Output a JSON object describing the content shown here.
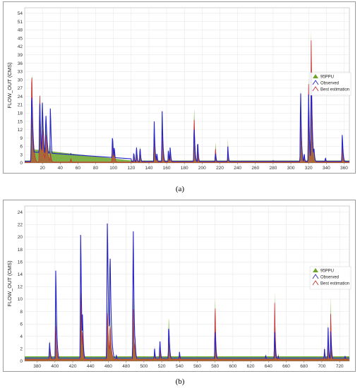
{
  "captions": {
    "a": "(a)",
    "b": "(b)"
  },
  "chart_data": [
    {
      "type": "area",
      "panel": "a",
      "xlabel": "",
      "ylabel": "FLOW_OUT (CMS)",
      "xlim": [
        0,
        366
      ],
      "ylim": [
        0,
        56
      ],
      "xticks": [
        20,
        40,
        60,
        80,
        100,
        120,
        140,
        160,
        180,
        200,
        220,
        240,
        260,
        280,
        300,
        320,
        340,
        360
      ],
      "yticks": [
        0,
        3,
        6,
        9,
        12,
        15,
        18,
        21,
        24,
        27,
        30,
        33,
        36,
        39,
        42,
        45,
        48,
        51,
        54
      ],
      "grid": true,
      "legend_position": "right",
      "legend": [
        {
          "name": "95PPU",
          "color": "#6aa52a",
          "kind": "fill"
        },
        {
          "name": "Observed",
          "color": "#2424c8",
          "kind": "line"
        },
        {
          "name": "Best estimation",
          "color": "#c83030",
          "kind": "line"
        }
      ],
      "baseflow": {
        "observed": 0.6,
        "estimated": 0.3,
        "ppu_upper": 0.9
      },
      "recession": [
        {
          "x0": 8,
          "x1": 120,
          "obs_start": 4.0,
          "obs_end": 1.5,
          "ppu_start": 5.0,
          "ppu_end": 0.9
        }
      ],
      "events": [
        {
          "x": 8,
          "obs": 26,
          "est": 34,
          "ppu": 35,
          "w": 1.5
        },
        {
          "x": 17,
          "obs": 23,
          "est": 26,
          "ppu": 26,
          "w": 1.3
        },
        {
          "x": 20,
          "obs": 22,
          "est": 12,
          "ppu": 18,
          "w": 1.6
        },
        {
          "x": 24,
          "obs": 17,
          "est": 10,
          "ppu": 16,
          "w": 2.0
        },
        {
          "x": 29,
          "obs": 21,
          "est": 4,
          "ppu": 8,
          "w": 1.1
        },
        {
          "x": 52,
          "obs": 3.5,
          "est": 1.5,
          "ppu": 2,
          "w": 1.2
        },
        {
          "x": 99,
          "obs": 10,
          "est": 8,
          "ppu": 9,
          "w": 1.2
        },
        {
          "x": 101,
          "obs": 6,
          "est": 5,
          "ppu": 6,
          "w": 1.0
        },
        {
          "x": 123,
          "obs": 4,
          "est": 3,
          "ppu": 4,
          "w": 0.9
        },
        {
          "x": 126,
          "obs": 6,
          "est": 6,
          "ppu": 7,
          "w": 0.9
        },
        {
          "x": 130,
          "obs": 6,
          "est": 6,
          "ppu": 7,
          "w": 0.9
        },
        {
          "x": 146,
          "obs": 15,
          "est": 12,
          "ppu": 14,
          "w": 1.0
        },
        {
          "x": 149,
          "obs": 4,
          "est": 3,
          "ppu": 4,
          "w": 0.8
        },
        {
          "x": 155,
          "obs": 19,
          "est": 12,
          "ppu": 15,
          "w": 1.0
        },
        {
          "x": 162,
          "obs": 5,
          "est": 4,
          "ppu": 5,
          "w": 0.9
        },
        {
          "x": 164,
          "obs": 6,
          "est": 5,
          "ppu": 6,
          "w": 0.9
        },
        {
          "x": 191,
          "obs": 14,
          "est": 18,
          "ppu": 23,
          "w": 1.0
        },
        {
          "x": 195,
          "obs": 9,
          "est": 5,
          "ppu": 7,
          "w": 0.8
        },
        {
          "x": 215,
          "obs": 4,
          "est": 6,
          "ppu": 9,
          "w": 0.8
        },
        {
          "x": 229,
          "obs": 6,
          "est": 6,
          "ppu": 9,
          "w": 0.8
        },
        {
          "x": 280,
          "obs": 1,
          "est": 1,
          "ppu": 1.5,
          "w": 0.8
        },
        {
          "x": 311,
          "obs": 28,
          "est": 25,
          "ppu": 30,
          "w": 1.0
        },
        {
          "x": 315,
          "obs": 4,
          "est": 3,
          "ppu": 4,
          "w": 0.8
        },
        {
          "x": 320,
          "obs": 26,
          "est": 30,
          "ppu": 33,
          "w": 1.0
        },
        {
          "x": 323,
          "obs": 34,
          "est": 46,
          "ppu": 50,
          "w": 1.2
        },
        {
          "x": 326,
          "obs": 6,
          "est": 5,
          "ppu": 6,
          "w": 1.0
        },
        {
          "x": 339,
          "obs": 2,
          "est": 1,
          "ppu": 2,
          "w": 1.0
        },
        {
          "x": 358,
          "obs": 11,
          "est": 7,
          "ppu": 9,
          "w": 1.0
        }
      ]
    },
    {
      "type": "area",
      "panel": "b",
      "xlabel": "",
      "ylabel": "FLOW_OUT (CMS)",
      "xlim": [
        366,
        731
      ],
      "ylim": [
        0,
        25
      ],
      "xticks": [
        380,
        400,
        420,
        440,
        460,
        480,
        500,
        520,
        540,
        560,
        580,
        600,
        620,
        640,
        660,
        680,
        700,
        720
      ],
      "yticks": [
        0,
        2,
        4,
        6,
        8,
        10,
        12,
        14,
        16,
        18,
        20,
        22,
        24
      ],
      "grid": true,
      "legend_position": "right",
      "legend": [
        {
          "name": "95PPU",
          "color": "#6aa52a",
          "kind": "fill"
        },
        {
          "name": "Observed",
          "color": "#2424c8",
          "kind": "line"
        },
        {
          "name": "Best estimation",
          "color": "#c83030",
          "kind": "line"
        }
      ],
      "baseflow": {
        "observed": 0.5,
        "estimated": 0.3,
        "ppu_upper": 0.8
      },
      "recession": [],
      "events": [
        {
          "x": 394,
          "obs": 3,
          "est": 2.5,
          "ppu": 3.5,
          "w": 1.2
        },
        {
          "x": 401,
          "obs": 15.5,
          "est": 6,
          "ppu": 8,
          "w": 1.1
        },
        {
          "x": 429,
          "obs": 22,
          "est": 12,
          "ppu": 14,
          "w": 1.1
        },
        {
          "x": 431,
          "obs": 8,
          "est": 5,
          "ppu": 6,
          "w": 1.0
        },
        {
          "x": 459,
          "obs": 23,
          "est": 8,
          "ppu": 10,
          "w": 1.5
        },
        {
          "x": 462,
          "obs": 18,
          "est": 6,
          "ppu": 8,
          "w": 1.5
        },
        {
          "x": 469,
          "obs": 1,
          "est": 0.8,
          "ppu": 1.2,
          "w": 1.0
        },
        {
          "x": 488,
          "obs": 22.5,
          "est": 9,
          "ppu": 12,
          "w": 1.1
        },
        {
          "x": 490,
          "obs": 4,
          "est": 3,
          "ppu": 4,
          "w": 1.0
        },
        {
          "x": 512,
          "obs": 2,
          "est": 1.5,
          "ppu": 2.5,
          "w": 1.0
        },
        {
          "x": 518,
          "obs": 3.5,
          "est": 2,
          "ppu": 3,
          "w": 1.0
        },
        {
          "x": 528,
          "obs": 6,
          "est": 6,
          "ppu": 8,
          "w": 1.1
        },
        {
          "x": 540,
          "obs": 1.5,
          "est": 1,
          "ppu": 1.5,
          "w": 1.0
        },
        {
          "x": 580,
          "obs": 5.5,
          "est": 10,
          "ppu": 12,
          "w": 0.9
        },
        {
          "x": 637,
          "obs": 1,
          "est": 0.8,
          "ppu": 1.2,
          "w": 0.8
        },
        {
          "x": 647,
          "obs": 5,
          "est": 10,
          "ppu": 12,
          "w": 0.9
        },
        {
          "x": 651,
          "obs": 1,
          "est": 1,
          "ppu": 1.5,
          "w": 0.8
        },
        {
          "x": 703,
          "obs": 2,
          "est": 2,
          "ppu": 2.5,
          "w": 0.9
        },
        {
          "x": 707,
          "obs": 6,
          "est": 5,
          "ppu": 7,
          "w": 0.8
        },
        {
          "x": 710,
          "obs": 5,
          "est": 8,
          "ppu": 11,
          "w": 0.9
        },
        {
          "x": 726,
          "obs": 1,
          "est": 0.8,
          "ppu": 1,
          "w": 0.8
        }
      ]
    }
  ]
}
